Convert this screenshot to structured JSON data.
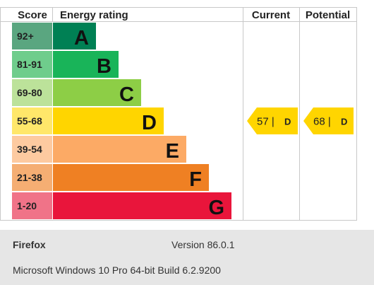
{
  "chart_data": {
    "type": "bar",
    "headers": {
      "score": "Score",
      "rating": "Energy rating",
      "current": "Current",
      "potential": "Potential"
    },
    "bands": [
      {
        "score": "92+",
        "letter": "A",
        "bar_color": "#008054",
        "score_color": "#5aa680"
      },
      {
        "score": "81-91",
        "letter": "B",
        "bar_color": "#19b459",
        "score_color": "#6fcd8c"
      },
      {
        "score": "69-80",
        "letter": "C",
        "bar_color": "#8dce46",
        "score_color": "#bce29a"
      },
      {
        "score": "55-68",
        "letter": "D",
        "bar_color": "#ffd500",
        "score_color": "#ffe76a"
      },
      {
        "score": "39-54",
        "letter": "E",
        "bar_color": "#fcaa65",
        "score_color": "#fdcaa0"
      },
      {
        "score": "21-38",
        "letter": "F",
        "bar_color": "#ef8023",
        "score_color": "#f5ae73"
      },
      {
        "score": "1-20",
        "letter": "G",
        "bar_color": "#e9153b",
        "score_color": "#f07388"
      }
    ],
    "current": {
      "value": 57,
      "band": "D"
    },
    "potential": {
      "value": 68,
      "band": "D"
    },
    "marker_color": "#ffd500"
  },
  "footer": {
    "browser": "Firefox",
    "version": "Version 86.0.1",
    "os": "Microsoft Windows 10 Pro 64-bit Build 6.2.9200"
  }
}
